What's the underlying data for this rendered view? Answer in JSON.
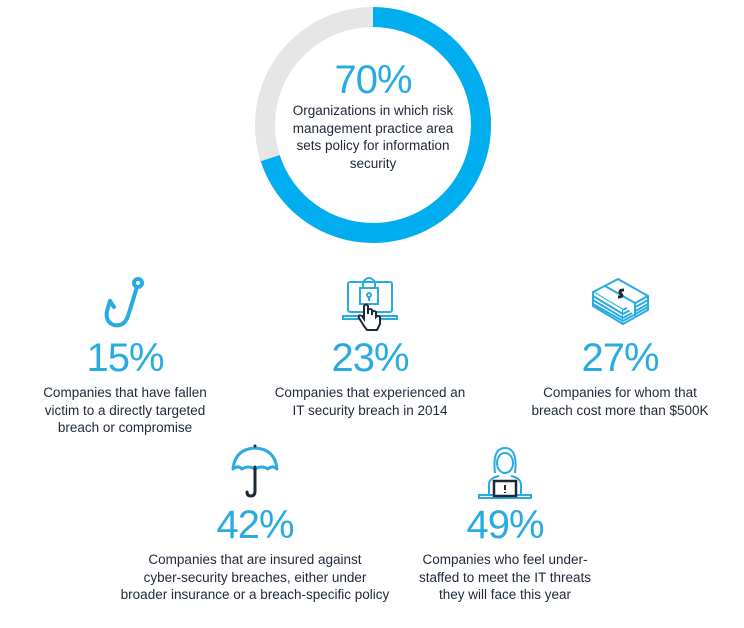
{
  "colors": {
    "accent": "#00aeef",
    "track": "#e6e6e6",
    "text": "#1e2838"
  },
  "chart_data": {
    "type": "pie",
    "variant": "donut",
    "categories": [
      "Organizations in which risk management practice area sets policy for information security",
      "Other"
    ],
    "values": [
      70,
      30
    ],
    "center_label": "70%",
    "center_text": "Organizations in which risk management practice area sets policy for information security"
  },
  "stats": [
    {
      "icon": "fish-hook-icon",
      "value": "15%",
      "text": [
        "Companies that have fallen",
        "victim to a directly targeted",
        "breach or compromise"
      ]
    },
    {
      "icon": "laptop-lock-hand-icon",
      "value": "23%",
      "text": [
        "Companies that experienced an",
        "IT security breach in 2014"
      ]
    },
    {
      "icon": "money-stack-icon",
      "value": "27%",
      "text": [
        "Companies for whom that",
        "breach cost more than $500K"
      ]
    },
    {
      "icon": "umbrella-icon",
      "value": "42%",
      "text": [
        "Companies that are insured against",
        "cyber-security breaches, either under",
        "broader insurance or a breach-specific policy"
      ]
    },
    {
      "icon": "person-laptop-alert-icon",
      "value": "49%",
      "text": [
        "Companies who feel under-",
        "staffed to meet the IT threats",
        "they will face this year"
      ]
    }
  ]
}
